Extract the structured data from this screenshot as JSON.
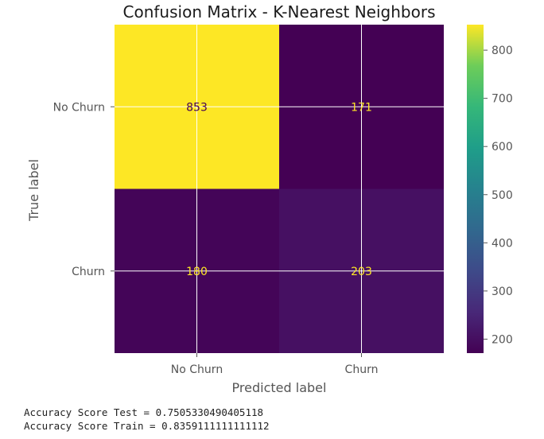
{
  "chart_data": {
    "type": "heatmap",
    "title": "Confusion Matrix - K-Nearest Neighbors",
    "xlabel": "Predicted label",
    "ylabel": "True label",
    "x_categories": [
      "No Churn",
      "Churn"
    ],
    "y_categories": [
      "No Churn",
      "Churn"
    ],
    "matrix": [
      [
        853,
        171
      ],
      [
        180,
        203
      ]
    ],
    "colormap": "viridis",
    "colorbar": {
      "range": [
        171,
        853
      ],
      "ticks": [
        200,
        300,
        400,
        500,
        600,
        700,
        800
      ]
    },
    "grid": true,
    "cell_text_colors": {
      "on_dark": "#FDE725",
      "on_light": "#440154"
    }
  },
  "output": {
    "test_line": "Accuracy Score Test = 0.7505330490405118",
    "train_line": "Accuracy Score Train = 0.8359111111111112"
  },
  "colors": {
    "grid": "#ffffff",
    "axis_text": "#555555",
    "title": "#1a1a1a"
  }
}
